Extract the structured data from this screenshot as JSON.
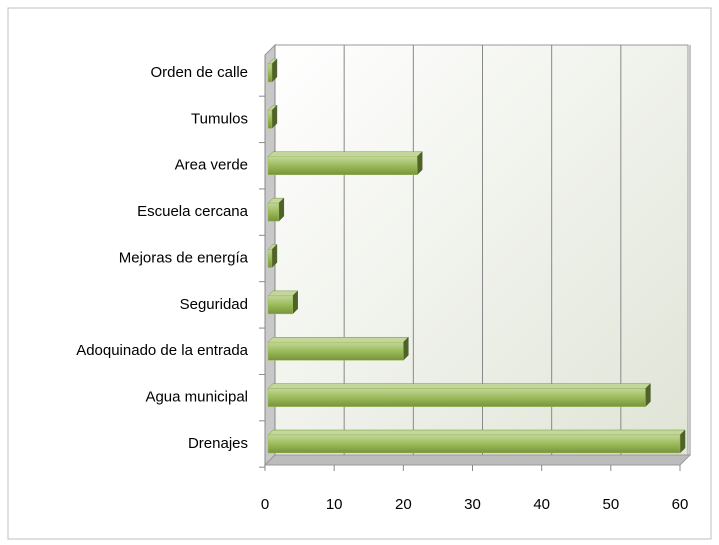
{
  "chart_data": {
    "type": "bar",
    "orientation": "horizontal",
    "categories": [
      "Orden de calle",
      "Tumulos",
      "Area verde",
      "Escuela cercana",
      "Mejoras de energía",
      "Seguridad",
      "Adoquinado de la entrada",
      "Agua municipal",
      "Drenajes"
    ],
    "values": [
      1,
      1,
      22,
      2,
      1,
      4,
      20,
      55,
      60
    ],
    "color": "#9bbb59",
    "xlim": [
      0,
      60
    ],
    "xticks": [
      0,
      10,
      20,
      30,
      40,
      50,
      60
    ],
    "grid": true
  }
}
